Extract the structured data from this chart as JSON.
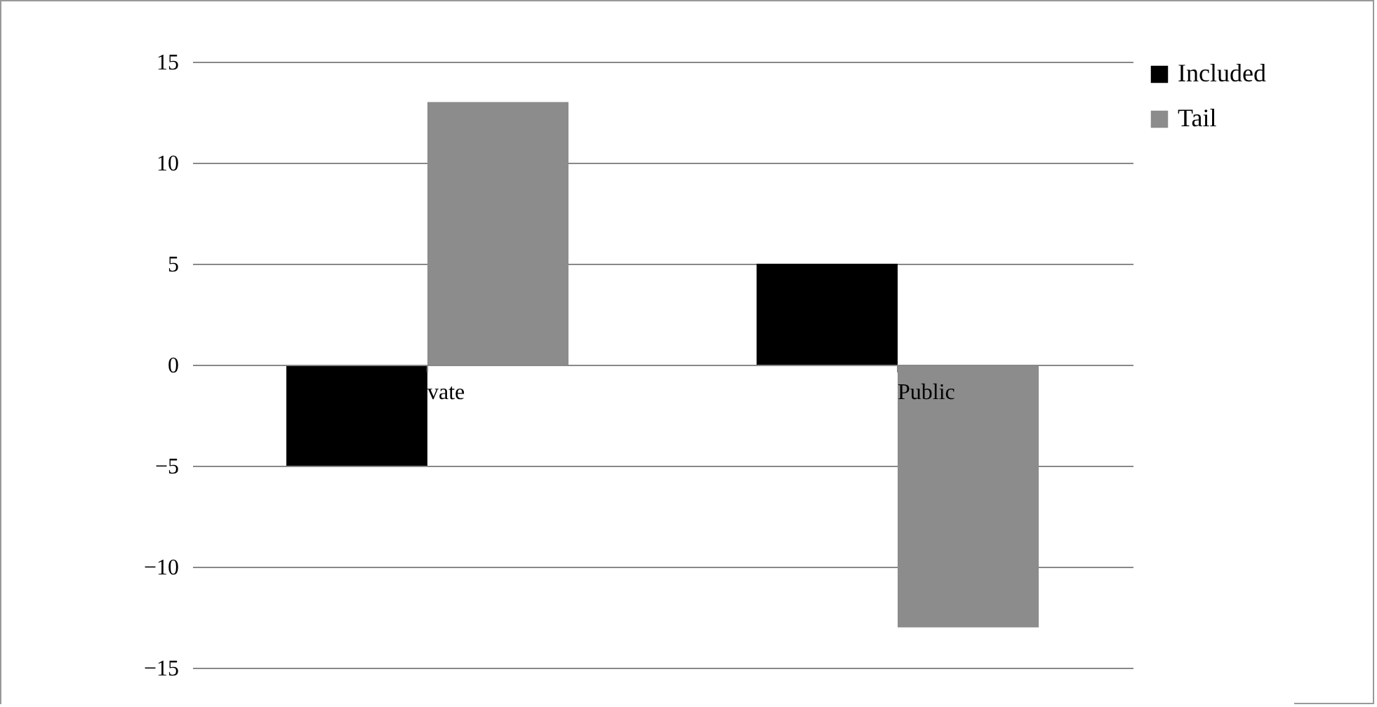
{
  "chart_data": {
    "type": "bar",
    "categories": [
      "vate",
      "Public"
    ],
    "series": [
      {
        "name": "Included",
        "color": "#000000",
        "values": [
          -5,
          5
        ]
      },
      {
        "name": "Tail",
        "color": "#8c8c8c",
        "values": [
          13,
          -13
        ]
      }
    ],
    "ylim": [
      -15,
      15
    ],
    "yticks": [
      -15,
      -10,
      -5,
      0,
      5,
      10,
      15
    ],
    "grid": "y",
    "legend": "right"
  }
}
